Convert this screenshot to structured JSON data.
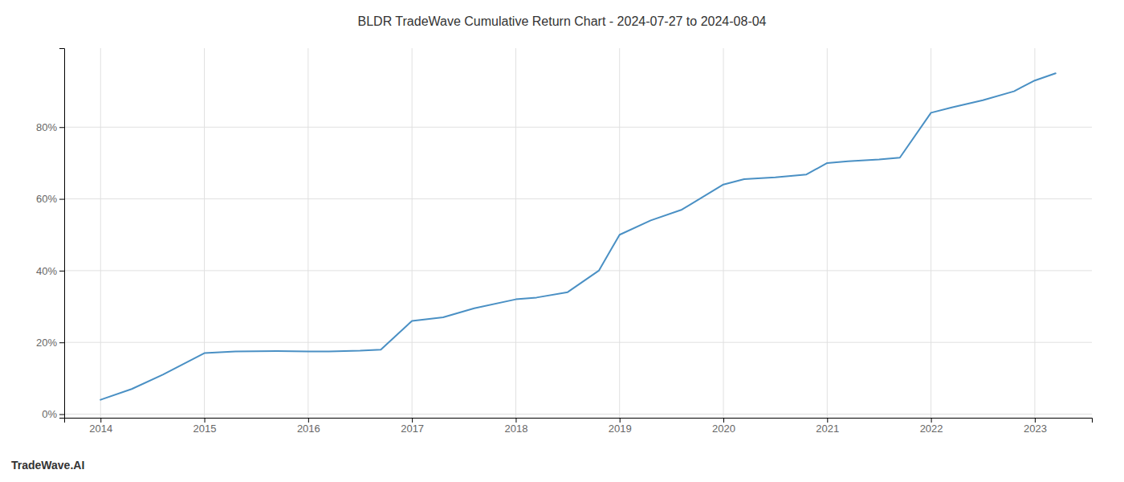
{
  "chart_data": {
    "type": "line",
    "title": "BLDR TradeWave Cumulative Return Chart - 2024-07-27 to 2024-08-04",
    "annotations": [
      "TradeWave.AI"
    ],
    "x": [
      2014.0,
      2014.3,
      2014.6,
      2015.0,
      2015.3,
      2015.7,
      2016.0,
      2016.2,
      2016.5,
      2016.7,
      2017.0,
      2017.3,
      2017.6,
      2018.0,
      2018.2,
      2018.5,
      2018.8,
      2019.0,
      2019.3,
      2019.6,
      2020.0,
      2020.2,
      2020.5,
      2020.8,
      2021.0,
      2021.2,
      2021.5,
      2021.7,
      2022.0,
      2022.2,
      2022.5,
      2022.8,
      2023.0,
      2023.2
    ],
    "values": [
      0.04,
      0.07,
      0.11,
      0.17,
      0.175,
      0.176,
      0.175,
      0.175,
      0.177,
      0.18,
      0.26,
      0.27,
      0.295,
      0.32,
      0.325,
      0.34,
      0.4,
      0.5,
      0.54,
      0.57,
      0.64,
      0.655,
      0.66,
      0.668,
      0.7,
      0.705,
      0.71,
      0.715,
      0.84,
      0.855,
      0.875,
      0.9,
      0.93,
      0.95
    ],
    "color": "#4a90c4",
    "xlim": [
      2013.65,
      2023.55
    ],
    "ylim": [
      -0.01,
      1.02
    ],
    "xticks": [
      2014,
      2015,
      2016,
      2017,
      2018,
      2019,
      2020,
      2021,
      2022,
      2023
    ],
    "yticks": [
      {
        "value": 0.0,
        "label": "0%"
      },
      {
        "value": 0.2,
        "label": "20%"
      },
      {
        "value": 0.4,
        "label": "40%"
      },
      {
        "value": 0.6,
        "label": "60%"
      },
      {
        "value": 0.8,
        "label": "80%"
      }
    ],
    "grid": true
  }
}
